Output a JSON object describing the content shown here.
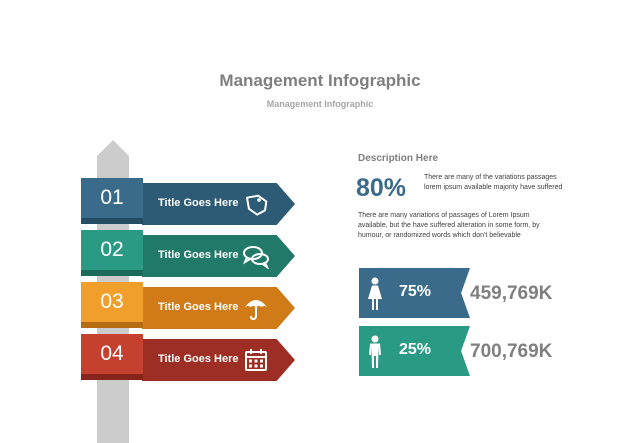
{
  "header": {
    "title": "Management Infographic",
    "subtitle": "Management Infographic"
  },
  "colors": {
    "step1": "#3a6b8a",
    "step2": "#2b9a85",
    "step3": "#f0a02a",
    "step4": "#c6402f",
    "sign1": "#2d5a75",
    "sign2": "#217a69",
    "sign3": "#d07b17",
    "sign4": "#9c2e23",
    "post": "#cccccc"
  },
  "steps": [
    {
      "number": "01",
      "title": "Title Goes Here",
      "icon": "tag-icon"
    },
    {
      "number": "02",
      "title": "Title Goes Here",
      "icon": "chat-bubbles-icon"
    },
    {
      "number": "03",
      "title": "Title Goes Here",
      "icon": "umbrella-icon"
    },
    {
      "number": "04",
      "title": "Title Goes Here",
      "icon": "calendar-icon"
    }
  ],
  "description": {
    "heading": "Description Here",
    "percent": "80%",
    "short_text": "There are many of the variations passages lorem ipsum available majority have suffered",
    "long_text": "There are many variations of passages  of Lorem Ipsum available, but the have suffered alteration in some  form, by humour, or randomized words  which  don't believable"
  },
  "stats": [
    {
      "percent": "75%",
      "value": "459,769K",
      "icon": "female-person-icon",
      "color": "#3a6b8a"
    },
    {
      "percent": "25%",
      "value": "700,769K",
      "icon": "male-person-icon",
      "color": "#2b9a85"
    }
  ]
}
